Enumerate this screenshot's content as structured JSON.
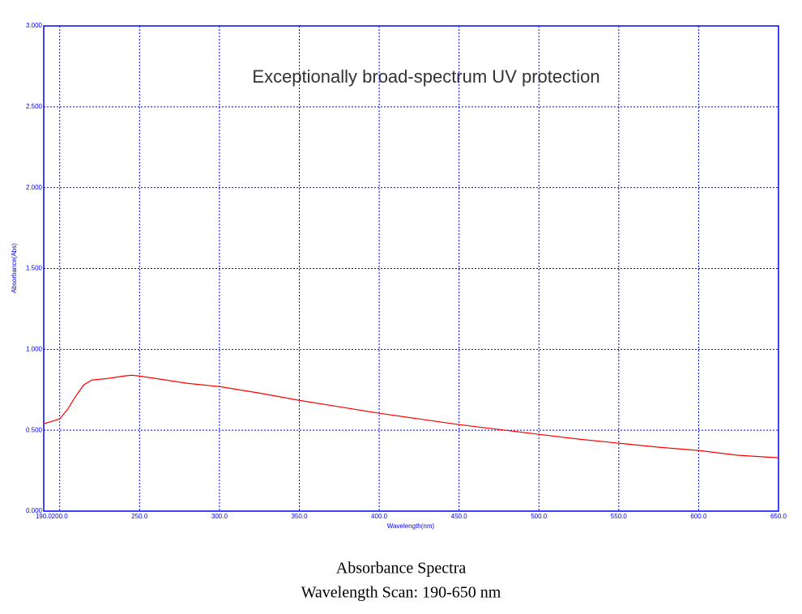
{
  "chart_data": {
    "type": "line",
    "title": "Absorbance Spectra",
    "subtitle": "Wavelength Scan: 190-650 nm",
    "annotation": "Exceptionally broad-spectrum UV protection",
    "x_label": "Wavelength(nm)",
    "y_label": "Absorbance(Abs)",
    "x": [
      190,
      200,
      205,
      210,
      215,
      220,
      230,
      240,
      245,
      250,
      260,
      270,
      280,
      300,
      325,
      350,
      375,
      400,
      425,
      450,
      475,
      500,
      525,
      550,
      575,
      600,
      625,
      650
    ],
    "values": [
      0.54,
      0.57,
      0.63,
      0.71,
      0.78,
      0.81,
      0.82,
      0.835,
      0.84,
      0.835,
      0.82,
      0.805,
      0.79,
      0.77,
      0.73,
      0.685,
      0.645,
      0.605,
      0.57,
      0.535,
      0.505,
      0.475,
      0.445,
      0.42,
      0.395,
      0.375,
      0.345,
      0.33
    ],
    "color": "#ff0000",
    "xlim": [
      190,
      650
    ],
    "ylim": [
      0,
      3
    ],
    "xticks": [
      {
        "value": 190,
        "label": "190.0"
      },
      {
        "value": 200,
        "label": "200.0"
      },
      {
        "value": 250,
        "label": "250.0"
      },
      {
        "value": 300,
        "label": "300.0"
      },
      {
        "value": 350,
        "label": "350.0"
      },
      {
        "value": 400,
        "label": "400.0"
      },
      {
        "value": 450,
        "label": "450.0"
      },
      {
        "value": 500,
        "label": "500.0"
      },
      {
        "value": 550,
        "label": "550.0"
      },
      {
        "value": 600,
        "label": "600.0"
      },
      {
        "value": 650,
        "label": "650.0"
      }
    ],
    "yticks": [
      {
        "value": 0,
        "label": "0.000"
      },
      {
        "value": 0.5,
        "label": "0.500"
      },
      {
        "value": 1,
        "label": "1.000"
      },
      {
        "value": 1.5,
        "label": "1.500"
      },
      {
        "value": 2,
        "label": "2.000"
      },
      {
        "value": 2.5,
        "label": "2.500"
      },
      {
        "value": 3,
        "label": "3.000"
      }
    ],
    "grid": true
  }
}
